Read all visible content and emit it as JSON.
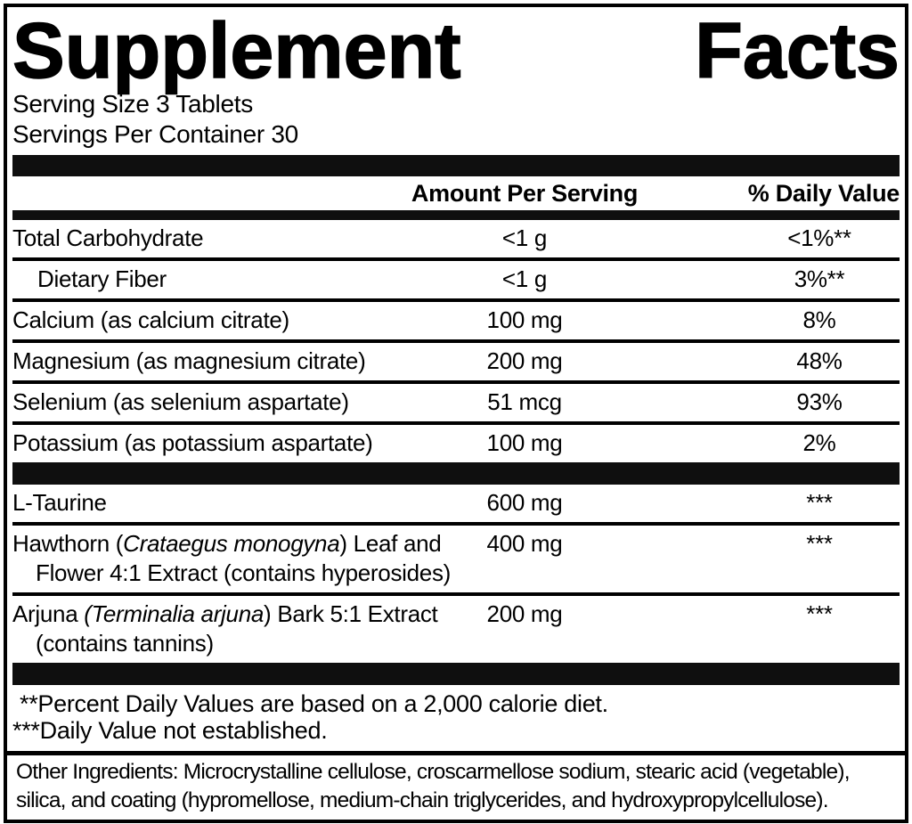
{
  "title": {
    "left": "Supplement",
    "right": "Facts"
  },
  "serving_info": {
    "serving_size": "Serving Size 3 Tablets",
    "servings_per_container": "Servings Per Container 30"
  },
  "table": {
    "amount_header": "Amount Per Serving",
    "dv_header": "% Daily Value",
    "sections": [
      {
        "rows": [
          {
            "indent": false,
            "name_lines": [
              [
                {
                  "t": "Total Carbohydrate"
                }
              ]
            ],
            "amount": "<1 g",
            "dv": "<1%**"
          },
          {
            "indent": true,
            "name_lines": [
              [
                {
                  "t": "Dietary Fiber"
                }
              ]
            ],
            "amount": "<1 g",
            "dv": "3%**"
          },
          {
            "indent": false,
            "name_lines": [
              [
                {
                  "t": "Calcium (as calcium citrate)"
                }
              ]
            ],
            "amount": "100 mg",
            "dv": "8%"
          },
          {
            "indent": false,
            "name_lines": [
              [
                {
                  "t": "Magnesium (as magnesium citrate)"
                }
              ]
            ],
            "amount": "200 mg",
            "dv": "48%"
          },
          {
            "indent": false,
            "name_lines": [
              [
                {
                  "t": "Selenium (as selenium aspartate)"
                }
              ]
            ],
            "amount": "51 mcg",
            "dv": "93%"
          },
          {
            "indent": false,
            "name_lines": [
              [
                {
                  "t": "Potassium (as potassium aspartate)"
                }
              ]
            ],
            "amount": "100 mg",
            "dv": "2%"
          }
        ]
      },
      {
        "rows": [
          {
            "indent": false,
            "name_lines": [
              [
                {
                  "t": "L-Taurine"
                }
              ]
            ],
            "amount": "600 mg",
            "dv": "***"
          },
          {
            "indent": false,
            "name_lines": [
              [
                {
                  "t": "Hawthorn ("
                },
                {
                  "t": "Crataegus monogyna",
                  "i": true
                },
                {
                  "t": ") Leaf and"
                }
              ],
              [
                {
                  "t": "Flower 4:1 Extract (contains hyperosides)"
                }
              ]
            ],
            "amount": "400 mg",
            "dv": "***"
          },
          {
            "indent": false,
            "name_lines": [
              [
                {
                  "t": "Arjuna "
                },
                {
                  "t": "(Terminalia arjuna",
                  "i": true
                },
                {
                  "t": ") Bark 5:1 Extract"
                }
              ],
              [
                {
                  "t": "(contains tannins)"
                }
              ]
            ],
            "amount": "200 mg",
            "dv": "***"
          }
        ]
      }
    ]
  },
  "footnotes": [
    "**Percent Daily Values are based on a 2,000 calorie diet.",
    "***Daily Value not established."
  ],
  "other_ingredients": {
    "lines": [
      "Other Ingredients: Microcrystalline cellulose, croscarmellose sodium, stearic acid (vegetable),",
      "silica, and coating (hypromellose, medium-chain triglycerides, and hydroxypropylcellulose)."
    ]
  }
}
